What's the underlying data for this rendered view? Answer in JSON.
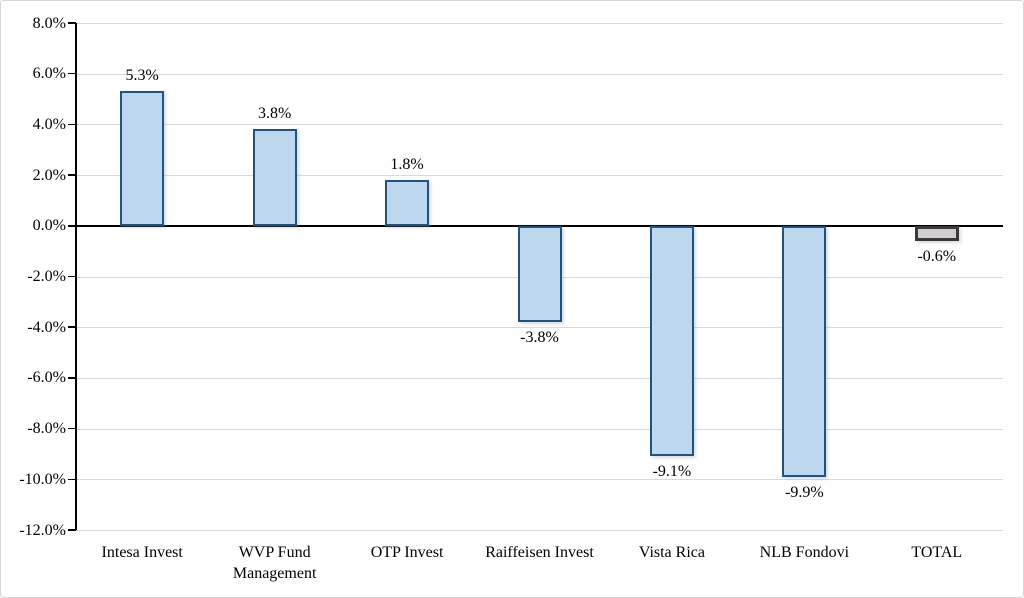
{
  "chart_data": {
    "type": "bar",
    "categories": [
      "Intesa Invest",
      "WVP Fund Management",
      "OTP Invest",
      "Raiffeisen Invest",
      "Vista Rica",
      "NLB Fondovi",
      "TOTAL"
    ],
    "values": [
      5.3,
      3.8,
      1.8,
      -3.8,
      -9.1,
      -9.9,
      -0.6
    ],
    "data_labels": [
      "5.3%",
      "3.8%",
      "1.8%",
      "-3.8%",
      "-9.1%",
      "-9.9%",
      "-0.6%"
    ],
    "title": "",
    "xlabel": "",
    "ylabel": "",
    "ylim": [
      -12,
      8
    ],
    "ytick_step": 2,
    "ytick_labels": [
      "8.0%",
      "6.0%",
      "4.0%",
      "2.0%",
      "0.0%",
      "-2.0%",
      "-4.0%",
      "-6.0%",
      "-8.0%",
      "-10.0%",
      "-12.0%"
    ],
    "ytick_values": [
      8,
      6,
      4,
      2,
      0,
      -2,
      -4,
      -6,
      -8,
      -10,
      -12
    ],
    "grid": true,
    "legend": false,
    "colors": {
      "bar_fill": "#BDD7EE",
      "bar_border": "#24527E",
      "total_fill": "#D0CECE",
      "total_border": "#3B3838",
      "gridline": "#D9D9D9",
      "axis_line": "#000000",
      "text": "#000000",
      "chart_border": "#D7D7D7",
      "background": "#FFFFFF"
    }
  }
}
